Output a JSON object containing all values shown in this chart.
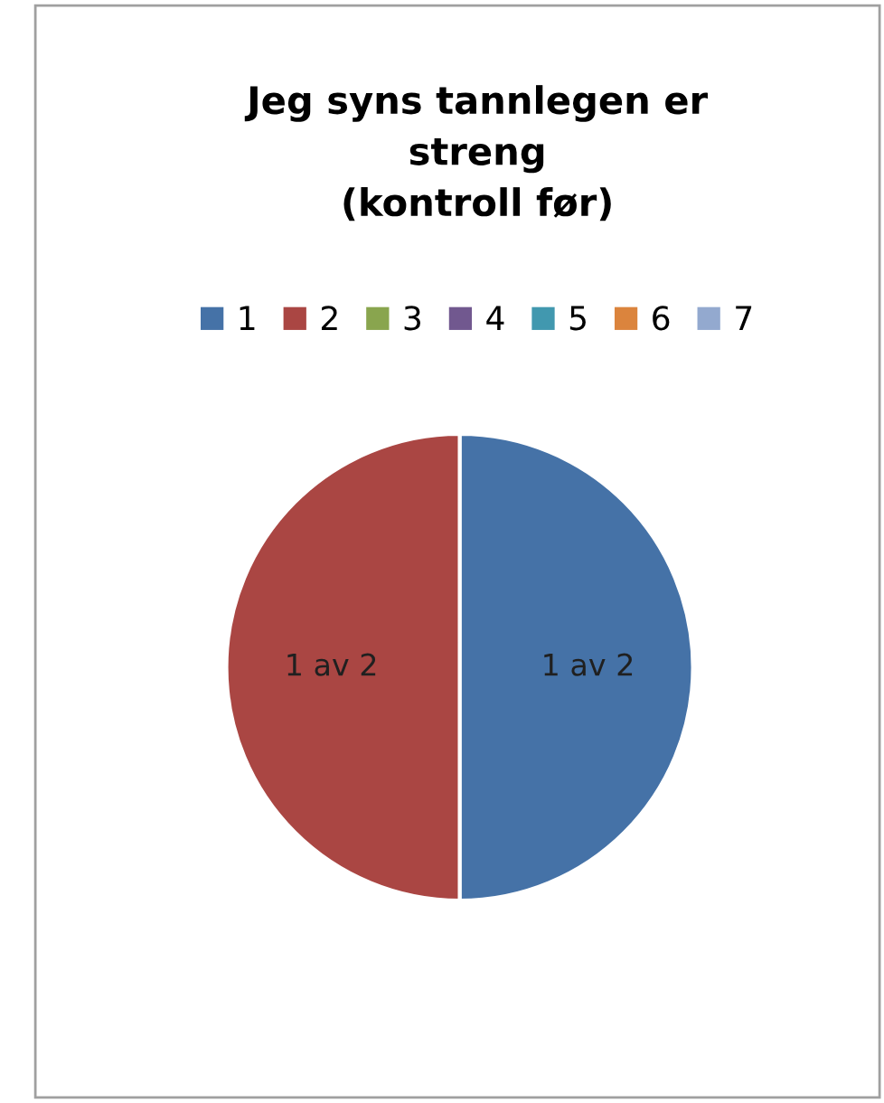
{
  "chart_data": {
    "type": "pie",
    "title": "Jeg syns tannlegen er\nstreng\n(kontroll før)",
    "categories": [
      "1",
      "2",
      "3",
      "4",
      "5",
      "6",
      "7"
    ],
    "values": [
      1,
      1,
      0,
      0,
      0,
      0,
      0
    ],
    "value_labels": [
      "1 av 2",
      "1 av 2",
      null,
      null,
      null,
      null,
      null
    ],
    "colors": [
      "#4572a7",
      "#aa4643",
      "#89a54e",
      "#71588f",
      "#4198af",
      "#db843d",
      "#93a9cf"
    ],
    "legend": "top"
  }
}
